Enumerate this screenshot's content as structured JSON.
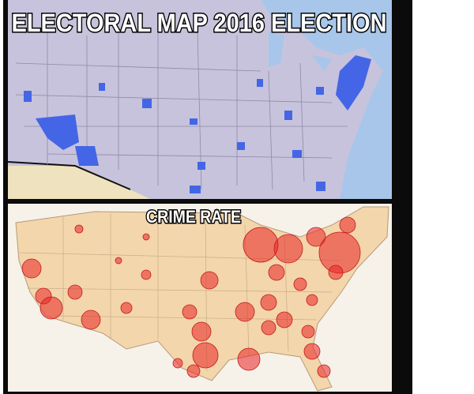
{
  "top_map": {
    "title": "ELECTORAL MAP 2016 ELECTION"
  },
  "bottom_map": {
    "title": "CRIME RATE"
  }
}
